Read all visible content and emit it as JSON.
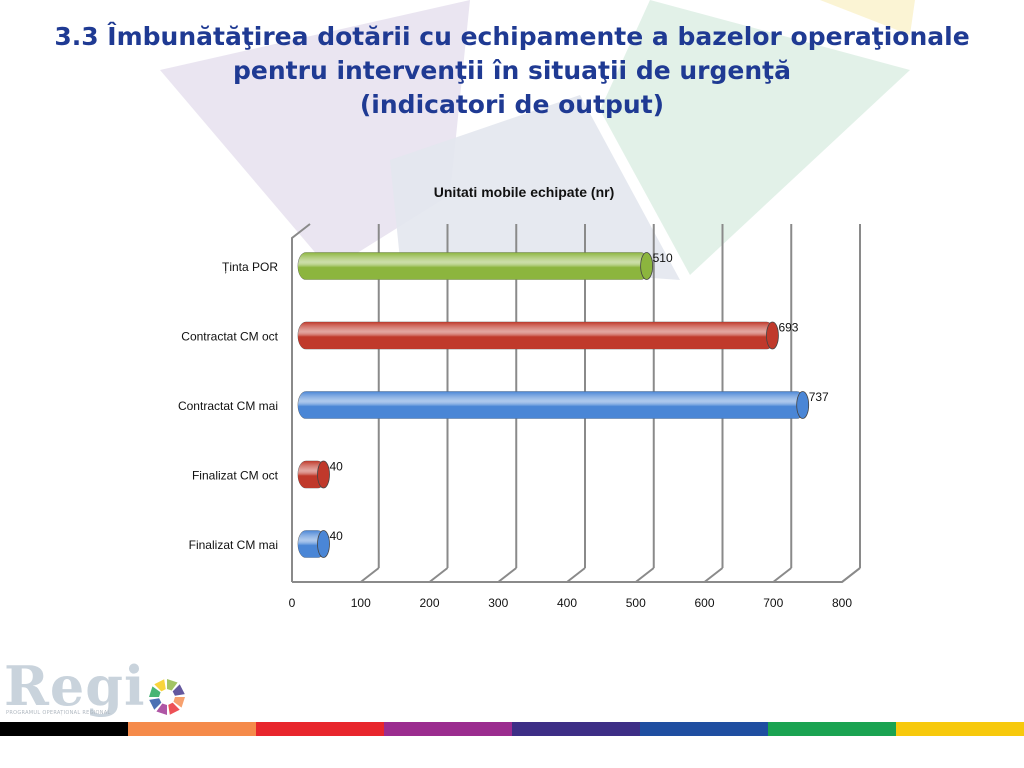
{
  "page": {
    "title_line1": "3.3 Îmbunătăţirea dotării cu echipamente a bazelor operaţionale",
    "title_line2": "pentru intervenţii în situaţii de urgenţă",
    "title_line3": "(indicatori de output)"
  },
  "logo": {
    "text": "Regi",
    "subtext": "PROGRAMUL OPERAȚIONAL REGIONAL"
  },
  "stripe_colors": [
    "#000000",
    "#f58a4a",
    "#e8262c",
    "#9b2c8f",
    "#3d2e86",
    "#1f4ea1",
    "#1aa351",
    "#f7c90c"
  ],
  "chart_data": {
    "type": "bar",
    "orientation": "horizontal",
    "title": "Unitati mobile echipate (nr)",
    "categories": [
      "Ținta POR",
      "Contractat CM oct",
      "Contractat CM mai",
      "Finalizat CM oct",
      "Finalizat CM mai"
    ],
    "values": [
      510,
      693,
      737,
      40,
      40
    ],
    "bar_colors": [
      "#8cb53e",
      "#c0392b",
      "#4a86d6",
      "#c0392b",
      "#4a86d6"
    ],
    "xlim": [
      0,
      800
    ],
    "xticks": [
      "0",
      "100",
      "200",
      "300",
      "400",
      "500",
      "600",
      "700",
      "800"
    ],
    "grid": true,
    "data_labels": true
  }
}
